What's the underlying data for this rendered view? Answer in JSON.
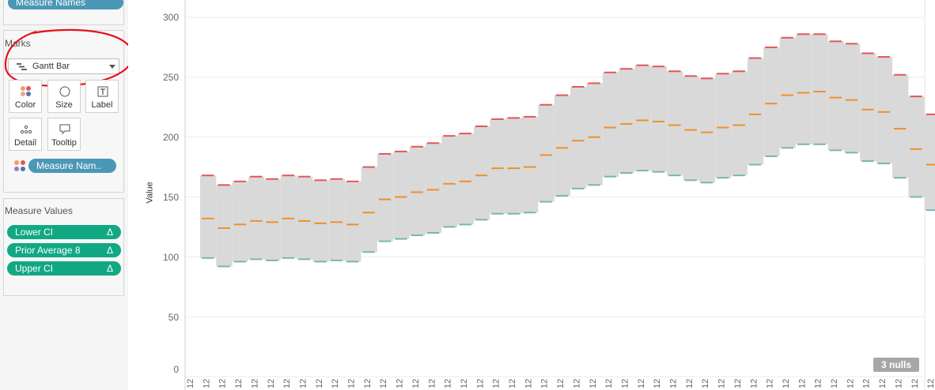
{
  "sidebar": {
    "top_pill": "Measure Names",
    "marks": {
      "title": "Marks",
      "mark_type": "Gantt Bar",
      "buttons": {
        "color": "Color",
        "size": "Size",
        "label": "Label",
        "detail": "Detail",
        "tooltip": "Tooltip"
      },
      "color_pill": "Measure Nam.."
    },
    "measure_values": {
      "title": "Measure Values",
      "items": [
        {
          "label": "Lower CI",
          "delta": "Δ"
        },
        {
          "label": "Prior Average 8",
          "delta": "Δ"
        },
        {
          "label": "Upper CI",
          "delta": "Δ"
        }
      ]
    }
  },
  "chart": {
    "y_label": "Value",
    "y_ticks": [
      "300",
      "250",
      "200",
      "150",
      "100",
      "50",
      "0"
    ],
    "x_tick_label": "12",
    "nulls_badge": "3 nulls"
  },
  "colors": {
    "upper": "#e15759",
    "average": "#f28e2b",
    "lower": "#76b7b2",
    "band": "#d9d9d9",
    "annotation": "#e8101a"
  },
  "chart_data": {
    "type": "gantt",
    "ylim": [
      0,
      300
    ],
    "series": [
      {
        "name": "Upper CI",
        "values": [
          168,
          160,
          163,
          167,
          165,
          168,
          167,
          164,
          165,
          163,
          175,
          186,
          188,
          192,
          195,
          201,
          203,
          209,
          215,
          216,
          217,
          227,
          235,
          242,
          245,
          254,
          257,
          260,
          259,
          255,
          251,
          249,
          253,
          255,
          266,
          275,
          283,
          286,
          286,
          280,
          278,
          270,
          267,
          252,
          234,
          219
        ]
      },
      {
        "name": "Prior Average 8",
        "values": [
          132,
          124,
          127,
          130,
          129,
          132,
          130,
          128,
          129,
          127,
          137,
          148,
          150,
          154,
          156,
          161,
          163,
          168,
          174,
          174,
          175,
          185,
          191,
          197,
          200,
          208,
          211,
          214,
          213,
          210,
          206,
          204,
          208,
          210,
          219,
          228,
          235,
          237,
          238,
          233,
          231,
          223,
          221,
          207,
          190,
          177
        ]
      },
      {
        "name": "Lower CI",
        "values": [
          99,
          92,
          96,
          98,
          97,
          99,
          98,
          96,
          97,
          96,
          104,
          113,
          115,
          118,
          120,
          125,
          127,
          131,
          136,
          136,
          137,
          146,
          151,
          157,
          160,
          167,
          170,
          172,
          171,
          168,
          164,
          162,
          166,
          168,
          177,
          184,
          191,
          194,
          194,
          189,
          187,
          180,
          178,
          166,
          150,
          139
        ]
      }
    ]
  }
}
